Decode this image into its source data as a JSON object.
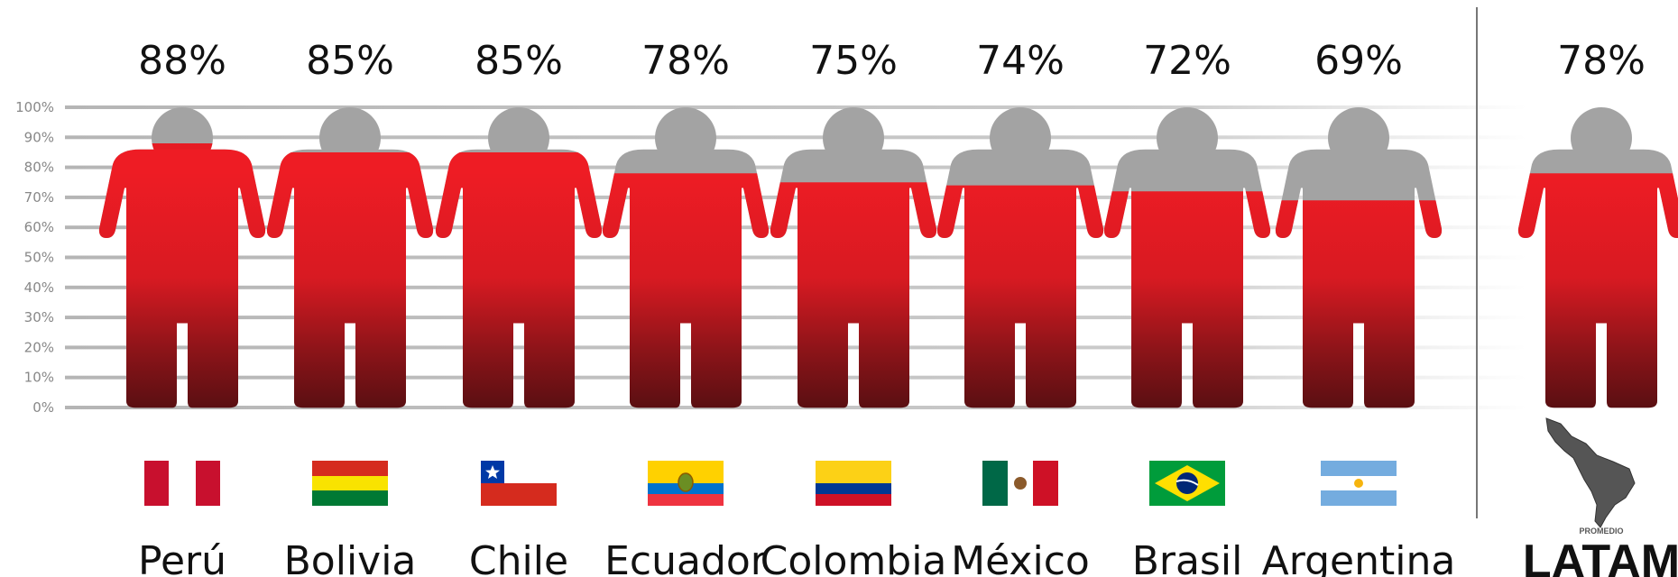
{
  "chart_data": {
    "type": "pictograph",
    "ylim": [
      0,
      100
    ],
    "y_ticks": [
      "100%",
      "90%",
      "80%",
      "70%",
      "60%",
      "50%",
      "40%",
      "30%",
      "20%",
      "10%",
      "0%"
    ],
    "grid": true,
    "categories": [
      "Perú",
      "Bolivia",
      "Chile",
      "Ecuador",
      "Colombia",
      "México",
      "Brasil",
      "Argentina"
    ],
    "values": [
      88,
      85,
      85,
      78,
      75,
      74,
      72,
      69
    ],
    "value_labels": [
      "88%",
      "85%",
      "85%",
      "78%",
      "75%",
      "74%",
      "72%",
      "69%"
    ],
    "average": {
      "label": "LATAM",
      "sublabel": "PROMEDIO",
      "value": 78,
      "value_label": "78%"
    },
    "fill_color": "#ee1c24",
    "fill_dark_color": "#5a0f12",
    "empty_color": "#a3a3a3",
    "icons": [
      "flag-peru-icon",
      "flag-bolivia-icon",
      "flag-chile-icon",
      "flag-ecuador-icon",
      "flag-colombia-icon",
      "flag-mexico-icon",
      "flag-brazil-icon",
      "flag-argentina-icon",
      "latam-map-icon"
    ]
  }
}
